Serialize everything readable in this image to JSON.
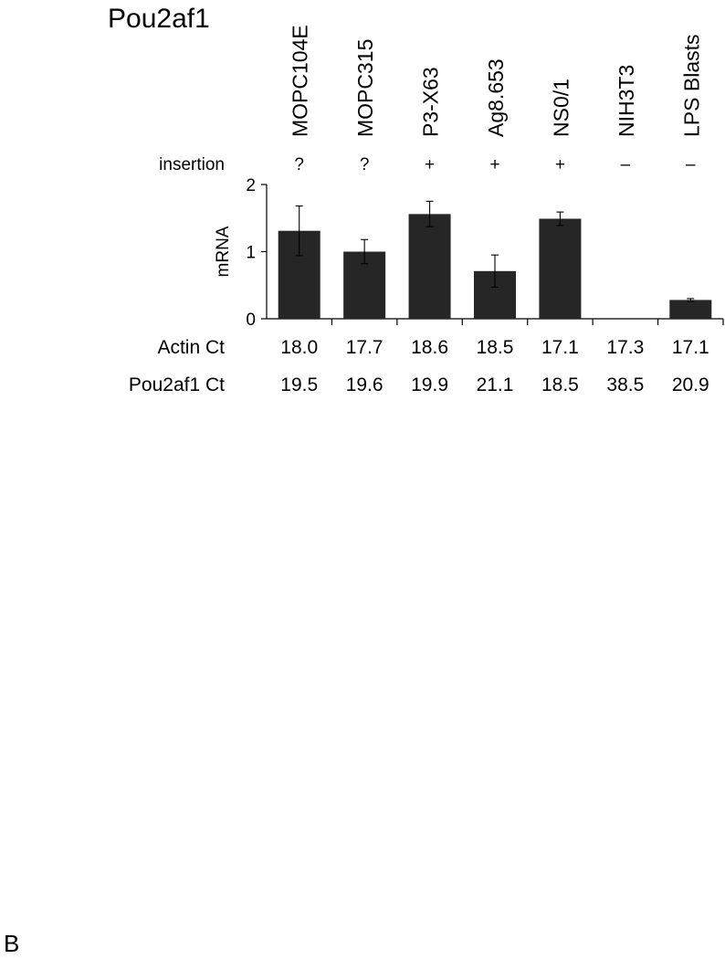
{
  "chart_data": {
    "type": "bar",
    "title": "Pou2af1",
    "categories": [
      "MOPC104E",
      "MOPC315",
      "P3-X63",
      "Ag8.653",
      "NS0/1",
      "NIH3T3",
      "LPS Blasts"
    ],
    "series": [
      {
        "values": [
          1.31,
          1.0,
          1.56,
          0.71,
          1.49,
          0.0,
          0.28
        ],
        "error": [
          0.37,
          0.18,
          0.19,
          0.24,
          0.1,
          0.0,
          0.02
        ],
        "color": "#262626"
      }
    ],
    "xlabel": "",
    "ylabel": "mRNA",
    "ylim": [
      0,
      2
    ],
    "yticks": [
      0,
      1,
      2
    ],
    "ytick_labels": [
      "0",
      "1",
      "2"
    ],
    "grid": false,
    "legend": "none",
    "rows": [
      {
        "label": "insertion",
        "values": [
          "?",
          "?",
          "+",
          "+",
          "+",
          "–",
          "–"
        ]
      },
      {
        "label": "Actin Ct",
        "values": [
          "18.0",
          "17.7",
          "18.6",
          "18.5",
          "17.1",
          "17.3",
          "17.1"
        ]
      },
      {
        "label": "Pou2af1 Ct",
        "values": [
          "19.5",
          "19.6",
          "19.9",
          "21.1",
          "18.5",
          "38.5",
          "20.9"
        ]
      }
    ]
  },
  "panel_letter": "B"
}
